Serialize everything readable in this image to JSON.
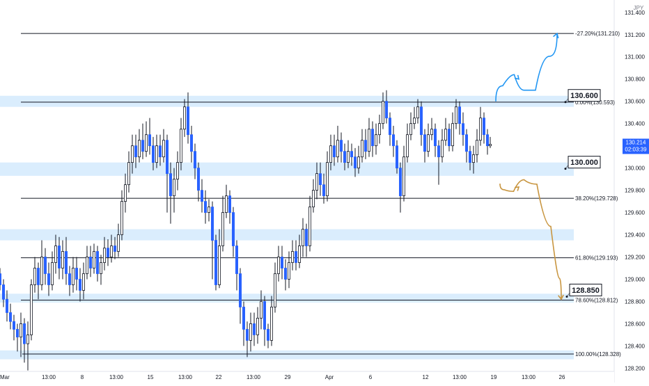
{
  "chart_data": {
    "type": "candlestick",
    "title": "",
    "xlabel": "",
    "ylabel": "",
    "currency_label": "JPY",
    "ylim": [
      128.14,
      131.48
    ],
    "x_range": [
      0,
      830
    ],
    "grid": false,
    "y_ticks": [
      {
        "value": 131.4,
        "label": "131.400"
      },
      {
        "value": 131.2,
        "label": "131.200"
      },
      {
        "value": 131.0,
        "label": "131.000"
      },
      {
        "value": 130.8,
        "label": "130.800"
      },
      {
        "value": 130.6,
        "label": "130.600"
      },
      {
        "value": 130.4,
        "label": "130.400"
      },
      {
        "value": 130.2,
        "label": "130.200"
      },
      {
        "value": 130.0,
        "label": "130.000"
      },
      {
        "value": 129.8,
        "label": "129.800"
      },
      {
        "value": 129.6,
        "label": "129.600"
      },
      {
        "value": 129.4,
        "label": "129.400"
      },
      {
        "value": 129.2,
        "label": "129.200"
      },
      {
        "value": 129.0,
        "label": "129.000"
      },
      {
        "value": 128.8,
        "label": "128.800"
      },
      {
        "value": 128.6,
        "label": "128.600"
      },
      {
        "value": 128.4,
        "label": "128.400"
      },
      {
        "value": 128.2,
        "label": "128.200"
      }
    ],
    "x_ticks": [
      {
        "x": 20,
        "label": "Mar"
      },
      {
        "x": 70,
        "label": "13:00"
      },
      {
        "x": 118,
        "label": "8"
      },
      {
        "x": 167,
        "label": "13:00"
      },
      {
        "x": 216,
        "label": "15"
      },
      {
        "x": 266,
        "label": "13:00"
      },
      {
        "x": 314,
        "label": "22"
      },
      {
        "x": 364,
        "label": "13:00"
      },
      {
        "x": 413,
        "label": "29"
      },
      {
        "x": 473,
        "label": "Apr"
      },
      {
        "x": 532,
        "label": "6"
      },
      {
        "x": 611,
        "label": "12"
      },
      {
        "x": 660,
        "label": "13:00"
      },
      {
        "x": 709,
        "label": "19"
      },
      {
        "x": 759,
        "label": "13:00"
      },
      {
        "x": 807,
        "label": "26"
      }
    ],
    "zones": [
      {
        "low": 130.55,
        "high": 130.65
      },
      {
        "low": 129.93,
        "high": 130.05
      },
      {
        "low": 129.35,
        "high": 129.45
      },
      {
        "low": 128.79,
        "high": 128.87
      },
      {
        "low": 128.28,
        "high": 128.36
      }
    ],
    "fib_levels": [
      {
        "value": 131.21,
        "label": "-27.20%(131.210)"
      },
      {
        "value": 130.593,
        "label": "0.00%(130.593)"
      },
      {
        "value": 129.728,
        "label": "38.20%(129.728)"
      },
      {
        "value": 129.193,
        "label": "61.80%(129.193)"
      },
      {
        "value": 128.812,
        "label": "78.60%(128.812)"
      },
      {
        "value": 128.328,
        "label": "100.00%(128.328)"
      }
    ],
    "price_callouts": [
      {
        "value": 130.6,
        "label": "130.600"
      },
      {
        "value": 130.0,
        "label": "130.000"
      },
      {
        "value": 128.85,
        "label": "128.850"
      }
    ],
    "last_price": {
      "value": 130.214,
      "label": "130.214",
      "countdown": "02:03:39"
    },
    "up_color": "#ffffff",
    "down_color": "#2962ff",
    "wick_color": "#131722",
    "scenario_paths": [
      {
        "name": "bullish",
        "color": "#2196f3",
        "points": [
          [
            712,
            130.6
          ],
          [
            732,
            130.88
          ],
          [
            745,
            130.8
          ],
          [
            760,
            130.6
          ],
          [
            778,
            130.8
          ],
          [
            800,
            131.21
          ]
        ]
      },
      {
        "name": "bearish",
        "color": "#c8953f",
        "points": [
          [
            718,
            129.86
          ],
          [
            730,
            129.75
          ],
          [
            745,
            129.83
          ],
          [
            760,
            129.96
          ],
          [
            782,
            129.75
          ],
          [
            800,
            129.2
          ],
          [
            806,
            128.82
          ]
        ]
      }
    ],
    "candles": [
      [
        0,
        129.05,
        128.95,
        129.1,
        128.9
      ],
      [
        5,
        128.95,
        128.82,
        129.0,
        128.75
      ],
      [
        10,
        128.82,
        128.7,
        128.9,
        128.62
      ],
      [
        15,
        128.7,
        128.62,
        128.78,
        128.55
      ],
      [
        20,
        128.62,
        128.55,
        128.68,
        128.45
      ],
      [
        25,
        128.55,
        128.48,
        128.6,
        128.35
      ],
      [
        30,
        128.48,
        128.6,
        128.7,
        128.3
      ],
      [
        35,
        128.6,
        128.42,
        128.65,
        128.25
      ],
      [
        40,
        128.42,
        128.5,
        128.62,
        128.18
      ],
      [
        45,
        128.5,
        128.95,
        129.0,
        128.45
      ],
      [
        50,
        128.95,
        129.1,
        129.2,
        128.88
      ],
      [
        55,
        129.1,
        128.95,
        129.15,
        128.82
      ],
      [
        60,
        128.95,
        129.2,
        129.35,
        128.9
      ],
      [
        65,
        129.2,
        129.05,
        129.28,
        128.95
      ],
      [
        70,
        129.05,
        128.95,
        129.15,
        128.85
      ],
      [
        75,
        128.95,
        129.15,
        129.25,
        128.9
      ],
      [
        80,
        129.15,
        129.3,
        129.4,
        129.05
      ],
      [
        85,
        129.3,
        129.1,
        129.38,
        129.0
      ],
      [
        90,
        129.1,
        129.25,
        129.35,
        129.0
      ],
      [
        95,
        129.25,
        129.05,
        129.38,
        128.95
      ],
      [
        100,
        129.05,
        128.95,
        129.12,
        128.85
      ],
      [
        105,
        128.95,
        129.1,
        129.2,
        128.88
      ],
      [
        110,
        129.1,
        129.0,
        129.2,
        128.9
      ],
      [
        115,
        129.0,
        128.9,
        129.1,
        128.8
      ],
      [
        120,
        128.9,
        129.05,
        129.15,
        128.82
      ],
      [
        125,
        129.05,
        129.2,
        129.3,
        129.0
      ],
      [
        130,
        129.2,
        129.1,
        129.3,
        129.02
      ],
      [
        135,
        129.1,
        129.25,
        129.32,
        129.05
      ],
      [
        140,
        129.25,
        129.05,
        129.3,
        128.98
      ],
      [
        145,
        129.05,
        129.15,
        129.22,
        128.95
      ],
      [
        150,
        129.15,
        129.28,
        129.38,
        129.08
      ],
      [
        155,
        129.28,
        129.2,
        129.36,
        129.12
      ],
      [
        160,
        129.2,
        129.3,
        129.4,
        129.15
      ],
      [
        165,
        129.3,
        129.25,
        129.38,
        129.18
      ],
      [
        170,
        129.25,
        129.4,
        129.5,
        129.2
      ],
      [
        175,
        129.4,
        129.7,
        129.8,
        129.35
      ],
      [
        180,
        129.7,
        129.85,
        129.95,
        129.6
      ],
      [
        185,
        129.85,
        130.05,
        130.15,
        129.78
      ],
      [
        190,
        130.05,
        130.2,
        130.3,
        129.95
      ],
      [
        195,
        130.2,
        130.1,
        130.3,
        130.0
      ],
      [
        200,
        130.1,
        130.25,
        130.35,
        130.05
      ],
      [
        205,
        130.25,
        130.15,
        130.4,
        130.08
      ],
      [
        210,
        130.15,
        130.3,
        130.42,
        130.1
      ],
      [
        215,
        130.3,
        130.2,
        130.45,
        130.12
      ],
      [
        220,
        130.2,
        130.05,
        130.28,
        129.98
      ],
      [
        225,
        130.05,
        130.2,
        130.3,
        130.0
      ],
      [
        230,
        130.2,
        130.1,
        130.3,
        130.02
      ],
      [
        235,
        130.1,
        130.25,
        130.35,
        130.05
      ],
      [
        240,
        130.25,
        129.95,
        130.3,
        129.6
      ],
      [
        245,
        129.95,
        129.75,
        130.05,
        129.5
      ],
      [
        250,
        129.75,
        129.9,
        130.0,
        129.6
      ],
      [
        255,
        129.9,
        130.05,
        130.15,
        129.8
      ],
      [
        260,
        130.05,
        130.35,
        130.45,
        129.98
      ],
      [
        265,
        130.35,
        130.55,
        130.62,
        130.28
      ],
      [
        270,
        130.55,
        130.3,
        130.68,
        130.22
      ],
      [
        275,
        130.3,
        130.15,
        130.38,
        130.05
      ],
      [
        280,
        130.15,
        130.0,
        130.22,
        129.9
      ],
      [
        285,
        130.0,
        129.8,
        130.05,
        129.7
      ],
      [
        290,
        129.8,
        129.7,
        129.9,
        129.6
      ],
      [
        295,
        129.7,
        129.6,
        129.8,
        129.5
      ],
      [
        300,
        129.6,
        129.65,
        129.72,
        129.52
      ],
      [
        305,
        129.65,
        129.35,
        129.7,
        129.0
      ],
      [
        310,
        129.35,
        128.95,
        129.4,
        128.9
      ],
      [
        315,
        128.95,
        129.3,
        129.45,
        128.92
      ],
      [
        320,
        129.3,
        129.6,
        129.75,
        129.25
      ],
      [
        325,
        129.6,
        129.75,
        129.85,
        129.55
      ],
      [
        330,
        129.75,
        129.6,
        129.8,
        129.5
      ],
      [
        335,
        129.6,
        129.3,
        129.65,
        129.2
      ],
      [
        340,
        129.3,
        129.05,
        129.35,
        128.9
      ],
      [
        345,
        129.05,
        128.75,
        129.1,
        128.6
      ],
      [
        350,
        128.75,
        128.55,
        128.8,
        128.4
      ],
      [
        355,
        128.55,
        128.45,
        128.62,
        128.3
      ],
      [
        360,
        128.45,
        128.6,
        128.7,
        128.35
      ],
      [
        365,
        128.6,
        128.5,
        128.7,
        128.4
      ],
      [
        370,
        128.5,
        128.65,
        128.75,
        128.42
      ],
      [
        375,
        128.65,
        128.8,
        128.9,
        128.55
      ],
      [
        380,
        128.8,
        128.55,
        128.85,
        128.4
      ],
      [
        385,
        128.55,
        128.45,
        128.6,
        128.38
      ],
      [
        390,
        128.45,
        128.75,
        128.85,
        128.4
      ],
      [
        395,
        128.75,
        129.05,
        129.15,
        128.7
      ],
      [
        400,
        129.05,
        129.2,
        129.3,
        128.98
      ],
      [
        405,
        129.2,
        129.1,
        129.3,
        129.0
      ],
      [
        410,
        129.1,
        129.0,
        129.18,
        128.9
      ],
      [
        415,
        129.0,
        129.15,
        129.25,
        128.92
      ],
      [
        420,
        129.15,
        129.25,
        129.35,
        129.08
      ],
      [
        425,
        129.25,
        129.15,
        129.35,
        129.08
      ],
      [
        430,
        129.15,
        129.3,
        129.4,
        129.1
      ],
      [
        435,
        129.3,
        129.45,
        129.55,
        129.2
      ],
      [
        440,
        129.45,
        129.3,
        129.5,
        129.2
      ],
      [
        445,
        129.3,
        129.65,
        129.75,
        129.25
      ],
      [
        450,
        129.65,
        129.8,
        129.9,
        129.6
      ],
      [
        455,
        129.8,
        129.95,
        130.05,
        129.72
      ],
      [
        460,
        129.95,
        129.85,
        130.05,
        129.75
      ],
      [
        465,
        129.85,
        129.75,
        129.95,
        129.68
      ],
      [
        470,
        129.75,
        130.05,
        130.15,
        129.7
      ],
      [
        475,
        130.05,
        130.2,
        130.3,
        129.98
      ],
      [
        480,
        130.2,
        130.1,
        130.3,
        130.02
      ],
      [
        485,
        130.1,
        130.25,
        130.38,
        130.05
      ],
      [
        490,
        130.25,
        130.15,
        130.32,
        130.05
      ],
      [
        495,
        130.15,
        130.05,
        130.22,
        129.98
      ],
      [
        500,
        130.05,
        130.15,
        130.25,
        130.0
      ],
      [
        505,
        130.15,
        130.1,
        130.22,
        130.02
      ],
      [
        510,
        130.1,
        130.0,
        130.18,
        129.92
      ],
      [
        515,
        130.0,
        130.1,
        130.2,
        129.95
      ],
      [
        520,
        130.1,
        130.25,
        130.35,
        130.05
      ],
      [
        525,
        130.25,
        130.15,
        130.35,
        130.08
      ],
      [
        530,
        130.15,
        130.35,
        130.45,
        130.1
      ],
      [
        535,
        130.35,
        130.2,
        130.42,
        130.1
      ],
      [
        540,
        130.2,
        130.3,
        130.4,
        130.12
      ],
      [
        545,
        130.3,
        130.4,
        130.48,
        130.22
      ],
      [
        550,
        130.4,
        130.6,
        130.68,
        130.35
      ],
      [
        555,
        130.6,
        130.45,
        130.7,
        130.4
      ],
      [
        560,
        130.45,
        130.3,
        130.5,
        130.2
      ],
      [
        565,
        130.3,
        130.2,
        130.38,
        130.1
      ],
      [
        570,
        130.2,
        130.0,
        130.25,
        129.95
      ],
      [
        575,
        130.0,
        129.75,
        130.05,
        129.6
      ],
      [
        580,
        129.75,
        130.1,
        130.2,
        129.7
      ],
      [
        585,
        130.1,
        130.3,
        130.4,
        130.05
      ],
      [
        590,
        130.3,
        130.4,
        130.5,
        130.25
      ],
      [
        595,
        130.4,
        130.45,
        130.55,
        130.35
      ],
      [
        600,
        130.45,
        130.55,
        130.62,
        130.4
      ],
      [
        605,
        130.55,
        130.3,
        130.6,
        130.2
      ],
      [
        610,
        130.3,
        130.15,
        130.35,
        130.05
      ],
      [
        615,
        130.15,
        130.3,
        130.4,
        130.1
      ],
      [
        620,
        130.3,
        130.35,
        130.45,
        130.25
      ],
      [
        625,
        130.35,
        130.2,
        130.4,
        130.1
      ],
      [
        630,
        130.2,
        130.1,
        130.25,
        129.85
      ],
      [
        635,
        130.1,
        130.25,
        130.35,
        130.05
      ],
      [
        640,
        130.25,
        130.35,
        130.45,
        130.2
      ],
      [
        645,
        130.35,
        130.2,
        130.4,
        130.15
      ],
      [
        650,
        130.2,
        130.4,
        130.5,
        130.15
      ],
      [
        655,
        130.4,
        130.55,
        130.62,
        130.35
      ],
      [
        660,
        130.55,
        130.4,
        130.6,
        130.3
      ],
      [
        665,
        130.4,
        130.3,
        130.5,
        130.2
      ],
      [
        670,
        130.3,
        130.15,
        130.35,
        130.05
      ],
      [
        675,
        130.15,
        130.05,
        130.2,
        129.98
      ],
      [
        680,
        130.05,
        130.12,
        130.2,
        129.95
      ],
      [
        685,
        130.12,
        130.25,
        130.35,
        130.05
      ],
      [
        690,
        130.25,
        130.45,
        130.55,
        130.2
      ],
      [
        695,
        130.45,
        130.3,
        130.5,
        130.22
      ],
      [
        700,
        130.3,
        130.2,
        130.35,
        130.12
      ],
      [
        704,
        130.2,
        130.214,
        130.28,
        130.18
      ]
    ]
  }
}
